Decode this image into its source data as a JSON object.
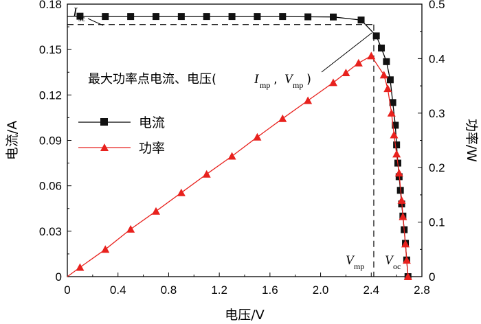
{
  "chart_data": {
    "type": "line",
    "xlabel": "电压/V",
    "ylabel_left": "电流/A",
    "ylabel_right": "功率/W",
    "xlim": [
      0,
      2.8
    ],
    "ylim_left": [
      0,
      0.18
    ],
    "ylim_right": [
      0,
      0.5
    ],
    "x_ticks": [
      "0",
      "0.4",
      "0.8",
      "1.2",
      "1.6",
      "2.0",
      "2.4",
      "2.8"
    ],
    "y_left_ticks": [
      "0",
      "0.03",
      "0.06",
      "0.09",
      "0.12",
      "0.15",
      "0.18"
    ],
    "y_right_ticks": [
      "0",
      "0.1",
      "0.2",
      "0.3",
      "0.4",
      "0.5"
    ],
    "grid": false,
    "legend_position": "center-left",
    "series": [
      {
        "name": "电流",
        "axis": "left",
        "color": "#000000",
        "marker": "square",
        "x": [
          0.1,
          0.3,
          0.5,
          0.7,
          0.9,
          1.1,
          1.3,
          1.5,
          1.7,
          1.9,
          2.1,
          2.32,
          2.44,
          2.48,
          2.52,
          2.55,
          2.57,
          2.59,
          2.6,
          2.61,
          2.62,
          2.63,
          2.64,
          2.65,
          2.66,
          2.67,
          2.68,
          2.69
        ],
        "values": [
          0.172,
          0.1718,
          0.1718,
          0.1718,
          0.1718,
          0.1718,
          0.1718,
          0.1718,
          0.1718,
          0.1716,
          0.1715,
          0.1695,
          0.159,
          0.151,
          0.142,
          0.13,
          0.115,
          0.1,
          0.087,
          0.075,
          0.066,
          0.057,
          0.048,
          0.04,
          0.031,
          0.022,
          0.011,
          0.0
        ]
      },
      {
        "name": "功率",
        "axis": "right",
        "color": "#e8211d",
        "marker": "triangle",
        "x": [
          0.1,
          0.3,
          0.5,
          0.7,
          0.9,
          1.1,
          1.3,
          1.5,
          1.7,
          1.9,
          2.1,
          2.2,
          2.3,
          2.4,
          2.5,
          2.53,
          2.56,
          2.58,
          2.6,
          2.62,
          2.64,
          2.65,
          2.67,
          2.68,
          2.69
        ],
        "values": [
          0.017,
          0.05,
          0.087,
          0.12,
          0.154,
          0.188,
          0.221,
          0.256,
          0.29,
          0.323,
          0.356,
          0.374,
          0.392,
          0.405,
          0.37,
          0.345,
          0.3,
          0.26,
          0.225,
          0.19,
          0.14,
          0.11,
          0.06,
          0.03,
          0.0
        ]
      }
    ],
    "legend": [
      {
        "label": "电流"
      },
      {
        "label": "功率"
      }
    ],
    "annotations": {
      "isc_label": "I",
      "isc_sub": "sc",
      "mpp_text": "最大功率点电流、电压(",
      "mpp_i": "I",
      "mpp_i_sub": "mp",
      "mpp_comma": ",",
      "mpp_v": "V",
      "mpp_v_sub": "mp",
      "mpp_close": ")",
      "vmp_label": "V",
      "vmp_sub": "mp",
      "voc_label": "V",
      "voc_sub": "oc",
      "imp_value": 0.1665,
      "vmp_value": 2.42
    }
  }
}
